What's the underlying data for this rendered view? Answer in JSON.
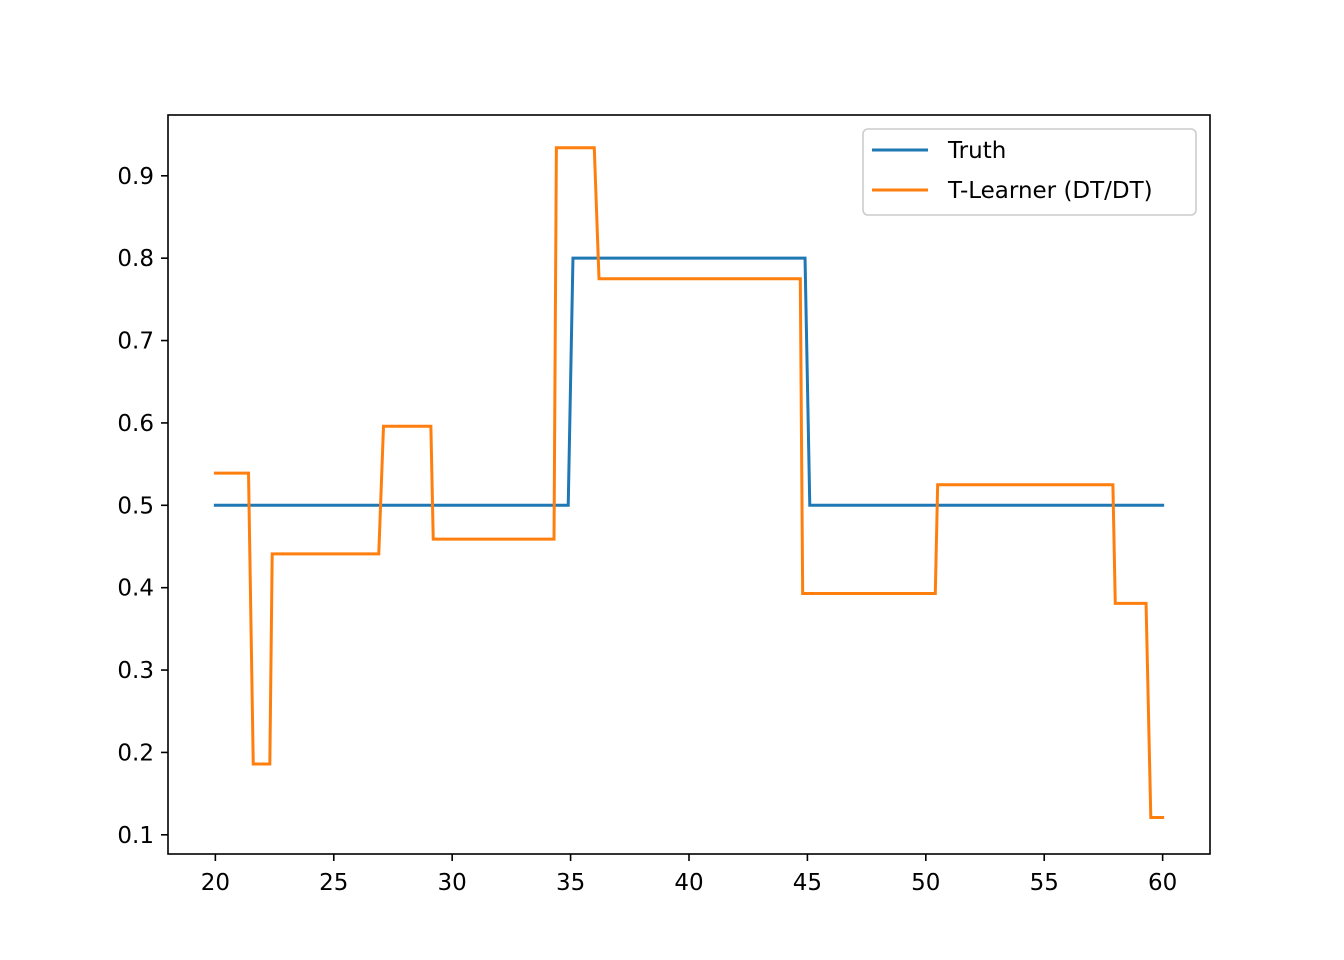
{
  "chart_data": {
    "type": "line",
    "title": "",
    "xlabel": "",
    "ylabel": "",
    "xlim": [
      18,
      62
    ],
    "ylim": [
      0.0767,
      0.9738
    ],
    "xticks": [
      20,
      25,
      30,
      35,
      40,
      45,
      50,
      55,
      60
    ],
    "yticks": [
      0.1,
      0.2,
      0.3,
      0.4,
      0.5,
      0.6,
      0.7,
      0.8,
      0.9
    ],
    "xtick_labels": [
      "20",
      "25",
      "30",
      "35",
      "40",
      "45",
      "50",
      "55",
      "60"
    ],
    "ytick_labels": [
      "0.1",
      "0.2",
      "0.3",
      "0.4",
      "0.5",
      "0.6",
      "0.7",
      "0.8",
      "0.9"
    ],
    "grid": false,
    "legend_position": "upper right",
    "series": [
      {
        "name": "Truth",
        "color": "#1f77b4",
        "x": [
          20,
          34.9,
          35.1,
          44.9,
          45.1,
          60
        ],
        "y": [
          0.5,
          0.5,
          0.8,
          0.8,
          0.5,
          0.5
        ]
      },
      {
        "name": "T-Learner (DT/DT)",
        "color": "#ff7f0e",
        "x": [
          20,
          21.4,
          21.6,
          22.3,
          22.4,
          26.9,
          27.1,
          29.1,
          29.2,
          34.3,
          34.4,
          36.0,
          36.2,
          44.7,
          44.8,
          50.4,
          50.5,
          57.9,
          58.0,
          59.3,
          59.5,
          60
        ],
        "y": [
          0.539,
          0.539,
          0.186,
          0.186,
          0.441,
          0.441,
          0.596,
          0.596,
          0.459,
          0.459,
          0.934,
          0.934,
          0.775,
          0.775,
          0.393,
          0.393,
          0.525,
          0.525,
          0.381,
          0.381,
          0.121,
          0.121
        ]
      }
    ]
  }
}
